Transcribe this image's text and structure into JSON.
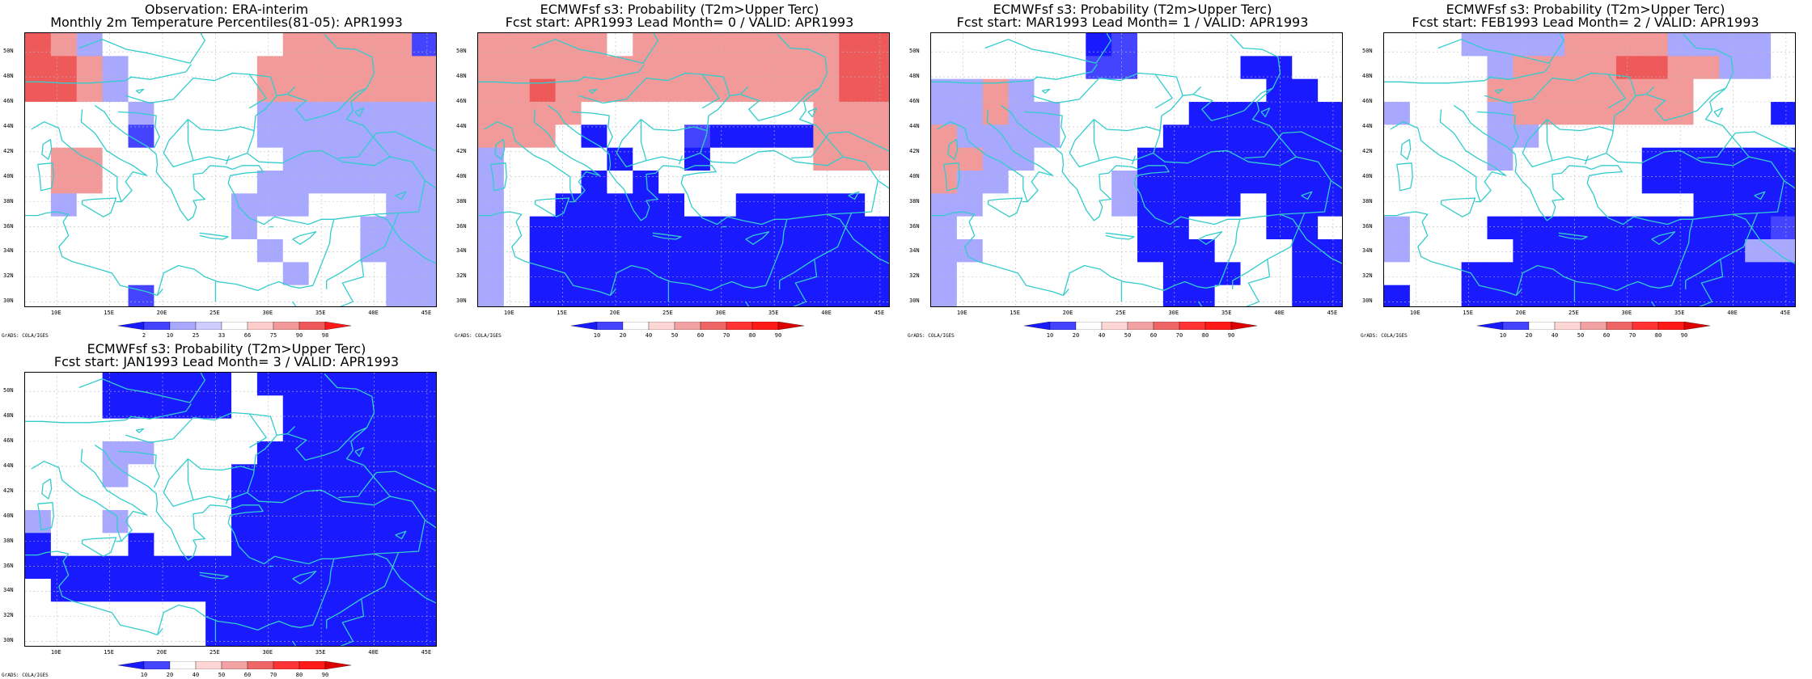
{
  "panels": [
    {
      "title_line1": "Observation: ERA-interim",
      "title_line2": "Monthly 2m Temperature Percentiles(81-05): APR1993",
      "legend_labels": [
        "2",
        "10",
        "25",
        "33",
        "66",
        "75",
        "90",
        "98"
      ],
      "grid": [
        "G F E B B B B B W W F F F F F D",
        "G G F E B B B W W F F F F F F F",
        "G G F E B B B W W F F F F F F F",
        "B B B B E B B B W E E E E E E E",
        "B B B B D B B B B E E E E E E E",
        "B F F B B B W W B B E E E E E E",
        "B F F B B B W W B E E E E E E E",
        "B E B B B B B B E E E B B B E E",
        "B B B B B B B B E B B B B E E E",
        "B B B B B B B B B E B B B E E E",
        "B B B B B B B B B B E B B B E E",
        "B B B B D B B B B B B B B B E E"
      ]
    },
    {
      "title_line1": "ECMWFsf s3: Probability (T2m>Upper Terc)",
      "title_line2": "Fcst start: APR1993   Lead Month= 0 / VALID: APR1993",
      "legend_labels": [
        "10",
        "20",
        "40",
        "50",
        "60",
        "70",
        "80",
        "90"
      ],
      "grid": [
        "F F F F F B F F F F F F F F G G",
        "F F F F F F F F F F F F F F G G",
        "F F G F F F F F F F F F F F G G",
        "F F F F B B B B B B B B B F F F",
        "F F F B C B B B D C C C C F F F",
        "E B B B B C B B C B B B B F F F",
        "E B B B C B C B B B B B B B B B",
        "E B B C C C C C B B C C C C C B",
        "E B C C C C C C C C C C C C C C",
        "E B C C C C C C C C C C C C C C",
        "E B C C C C C C C C C C C C C C",
        "E B C C C C C C C C C C C C C C"
      ]
    },
    {
      "title_line1": "ECMWFsf s3: Probability (T2m>Upper Terc)",
      "title_line2": "Fcst start: MAR1993   Lead Month= 1 / VALID: APR1993",
      "legend_labels": [
        "10",
        "20",
        "40",
        "50",
        "60",
        "70",
        "80",
        "90"
      ],
      "grid": [
        "B B B B B B C D B B B B B B B B",
        "B B B B B B D D B B B B C C B B",
        "E E F E B B B B B B B B B C C B",
        "E E F E E B B B B B C C C C C C",
        "F E E E E B B B B C C C C C C C",
        "F F E E B B B B C C C C C C C C",
        "F E E B B B B E C C C C C C C C",
        "E E B B B B B E C C C C B C C C",
        "E B B B B B B B C C B B B C C B",
        "E E B B B B B B C C C B B B C C",
        "E B B B B B B B B C C C B B C C",
        "E B B B B B B B B C C B B B C C"
      ]
    },
    {
      "title_line1": "ECMWFsf s3: Probability (T2m>Upper Terc)",
      "title_line2": "Fcst start: FEB1993   Lead Month= 2 / VALID: APR1993",
      "legend_labels": [
        "10",
        "20",
        "40",
        "50",
        "60",
        "70",
        "80",
        "90"
      ],
      "grid": [
        "B B B E E E E F F F F E E E E B",
        "B B B B E F F F F G G F F E E B",
        "B B B B F F F F F F F F B B B B",
        "E B B B E F F F F F F F B B B C",
        "B B B B E E B B B B B B B B B B",
        "B B B B E B B B B B C C C C C C",
        "B B B B B B B B B B C C C C C C",
        "B B B B B B B B B B B B C C C C",
        "E B B B C C C C C C C C C C C D",
        "E B B B B C C C C C C C C C E E",
        "B B B C C C C C C C C C C C C C",
        "C B B C C C C C C C C C C C C C"
      ]
    },
    {
      "title_line1": "ECMWFsf s3: Probability (T2m>Upper Terc)",
      "title_line2": "Fcst start: JAN1993   Lead Month= 3 / VALID: APR1993",
      "legend_labels": [
        "10",
        "20",
        "40",
        "50",
        "60",
        "70",
        "80",
        "90"
      ],
      "grid": [
        "B B B C C C C C B C C C C C C C",
        "B B B C C C C C B B C C C C C C",
        "B B B B B B B B B B C C C C C C",
        "B B B E E B B B B C C C C C C C",
        "B B B E B B B B C C C C C C C C",
        "B B B B B B B B C C C C C C C C",
        "E B B E B B B B C C C C C C C C",
        "C B B B C B B B C C C C C C C C",
        "C C C C C C C C C C C C C C C C",
        "B C C C C C C C C C C C C C C C",
        "B B B B B B B C C C C C C C C C",
        "B B B B B B B C C C C C C C C C"
      ]
    }
  ],
  "y_ticks": [
    "50N",
    "48N",
    "46N",
    "44N",
    "42N",
    "40N",
    "38N",
    "36N",
    "34N",
    "32N",
    "30N"
  ],
  "x_ticks": [
    "10E",
    "15E",
    "20E",
    "25E",
    "30E",
    "35E",
    "40E",
    "45E"
  ],
  "credit": "GrADS: COLA/IGES",
  "colors": {
    "B": "#ffffff",
    "C": "#1a1aff",
    "D": "#4444ff",
    "E": "#a8a8ff",
    "F": "#f29a9a",
    "G": "#ee5a5a",
    "H": "#ff1a1a",
    "coast": "#33cccc"
  },
  "palette_obs": [
    "#1a1aff",
    "#4444ff",
    "#a8a8ff",
    "#ccccff",
    "#ffffff",
    "#ffcccc",
    "#f29a9a",
    "#ee5a5a",
    "#ff1a1a"
  ],
  "palette_fc": [
    "#1a1aff",
    "#4444ff",
    "#ffffff",
    "#ffd6d6",
    "#f2a2a2",
    "#ee6666",
    "#ff3333",
    "#ff1a1a",
    "#dd0000"
  ]
}
